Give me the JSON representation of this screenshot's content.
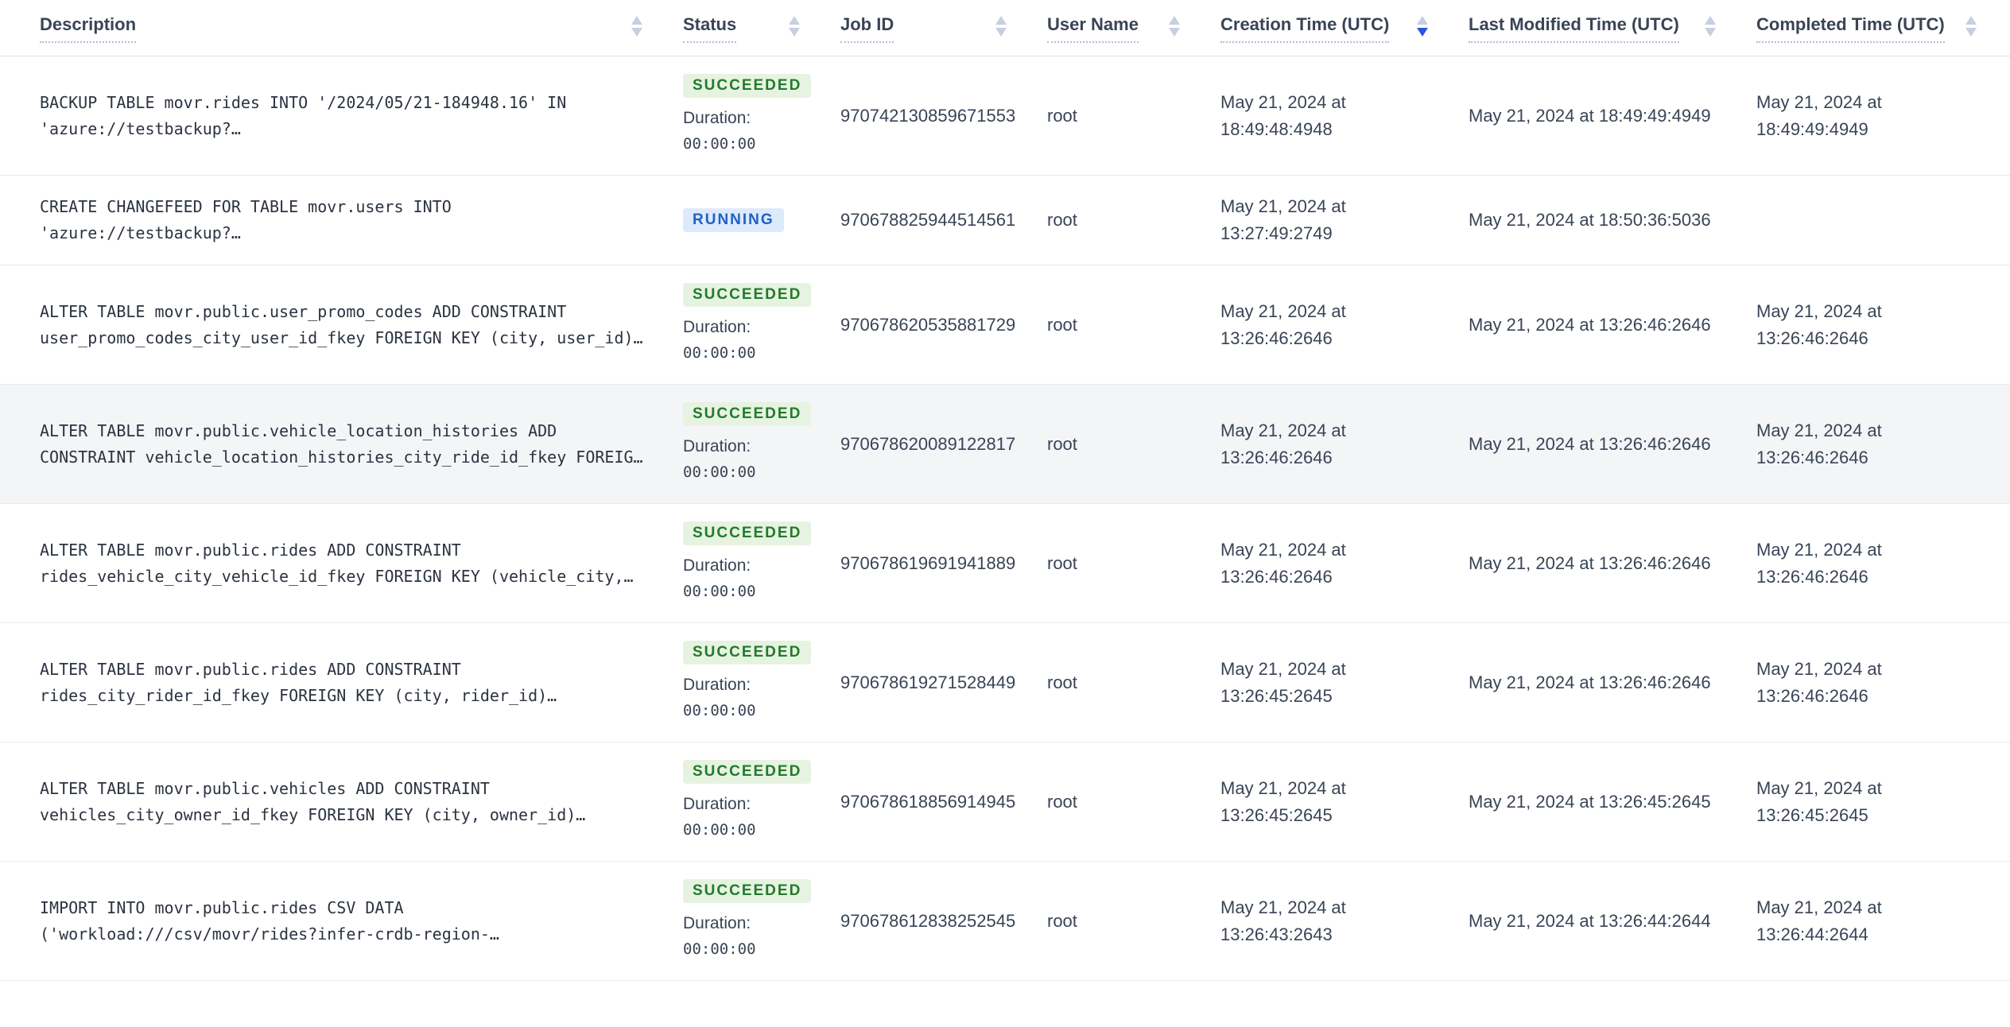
{
  "table": {
    "columns": [
      {
        "label": "Description",
        "sort": "none"
      },
      {
        "label": "Status",
        "sort": "none"
      },
      {
        "label": "Job ID",
        "sort": "none"
      },
      {
        "label": "User Name",
        "sort": "none"
      },
      {
        "label": "Creation Time (UTC)",
        "sort": "desc"
      },
      {
        "label": "Last Modified Time (UTC)",
        "sort": "none"
      },
      {
        "label": "Completed Time (UTC)",
        "sort": "none"
      }
    ],
    "duration_label": "Duration:",
    "rows": [
      {
        "description": "BACKUP TABLE movr.rides INTO '/2024/05/21-184948.16' IN\n'azure://testbackup?…",
        "status": "SUCCEEDED",
        "duration": "00:00:00",
        "job_id": "970742130859671553",
        "user_name": "root",
        "creation_time": "May 21, 2024 at 18:49:48:4948",
        "last_modified_time": "May 21, 2024 at 18:49:49:4949",
        "completed_time": "May 21, 2024 at 18:49:49:4949",
        "highlighted": false
      },
      {
        "description": "CREATE CHANGEFEED FOR TABLE movr.users INTO\n'azure://testbackup?…",
        "status": "RUNNING",
        "duration": null,
        "job_id": "970678825944514561",
        "user_name": "root",
        "creation_time": "May 21, 2024 at 13:27:49:2749",
        "last_modified_time": "May 21, 2024 at 18:50:36:5036",
        "completed_time": "",
        "highlighted": false
      },
      {
        "description": "ALTER TABLE movr.public.user_promo_codes ADD CONSTRAINT\nuser_promo_codes_city_user_id_fkey FOREIGN KEY (city, user_id)…",
        "status": "SUCCEEDED",
        "duration": "00:00:00",
        "job_id": "970678620535881729",
        "user_name": "root",
        "creation_time": "May 21, 2024 at 13:26:46:2646",
        "last_modified_time": "May 21, 2024 at 13:26:46:2646",
        "completed_time": "May 21, 2024 at 13:26:46:2646",
        "highlighted": false
      },
      {
        "description": "ALTER TABLE movr.public.vehicle_location_histories ADD\nCONSTRAINT vehicle_location_histories_city_ride_id_fkey FOREIG…",
        "status": "SUCCEEDED",
        "duration": "00:00:00",
        "job_id": "970678620089122817",
        "user_name": "root",
        "creation_time": "May 21, 2024 at 13:26:46:2646",
        "last_modified_time": "May 21, 2024 at 13:26:46:2646",
        "completed_time": "May 21, 2024 at 13:26:46:2646",
        "highlighted": true
      },
      {
        "description": "ALTER TABLE movr.public.rides ADD CONSTRAINT\nrides_vehicle_city_vehicle_id_fkey FOREIGN KEY (vehicle_city,…",
        "status": "SUCCEEDED",
        "duration": "00:00:00",
        "job_id": "970678619691941889",
        "user_name": "root",
        "creation_time": "May 21, 2024 at 13:26:46:2646",
        "last_modified_time": "May 21, 2024 at 13:26:46:2646",
        "completed_time": "May 21, 2024 at 13:26:46:2646",
        "highlighted": false
      },
      {
        "description": "ALTER TABLE movr.public.rides ADD CONSTRAINT\nrides_city_rider_id_fkey FOREIGN KEY (city, rider_id)…",
        "status": "SUCCEEDED",
        "duration": "00:00:00",
        "job_id": "970678619271528449",
        "user_name": "root",
        "creation_time": "May 21, 2024 at 13:26:45:2645",
        "last_modified_time": "May 21, 2024 at 13:26:46:2646",
        "completed_time": "May 21, 2024 at 13:26:46:2646",
        "highlighted": false
      },
      {
        "description": "ALTER TABLE movr.public.vehicles ADD CONSTRAINT\nvehicles_city_owner_id_fkey FOREIGN KEY (city, owner_id)…",
        "status": "SUCCEEDED",
        "duration": "00:00:00",
        "job_id": "970678618856914945",
        "user_name": "root",
        "creation_time": "May 21, 2024 at 13:26:45:2645",
        "last_modified_time": "May 21, 2024 at 13:26:45:2645",
        "completed_time": "May 21, 2024 at 13:26:45:2645",
        "highlighted": false
      },
      {
        "description": "IMPORT INTO movr.public.rides CSV DATA\n('workload:///csv/movr/rides?infer-crdb-region-…",
        "status": "SUCCEEDED",
        "duration": "00:00:00",
        "job_id": "970678612838252545",
        "user_name": "root",
        "creation_time": "May 21, 2024 at 13:26:43:2643",
        "last_modified_time": "May 21, 2024 at 13:26:44:2644",
        "completed_time": "May 21, 2024 at 13:26:44:2644",
        "highlighted": false
      }
    ]
  },
  "colors": {
    "succeeded_text": "#237a2c",
    "succeeded_bg": "#e6f3e1",
    "running_text": "#2061c4",
    "running_bg": "#ddeafc",
    "sort_active": "#2957e0",
    "sort_inactive": "#c7cfe0",
    "highlighted_row_bg": "#f4f5f7"
  }
}
